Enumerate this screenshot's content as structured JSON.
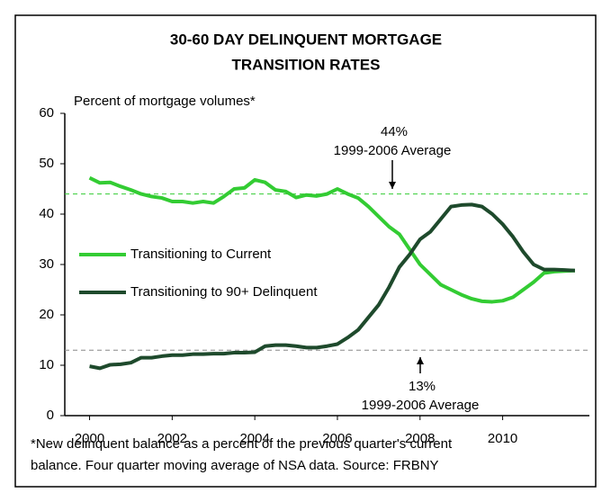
{
  "chart_data": {
    "type": "line",
    "title": [
      "30-60 DAY DELINQUENT MORTGAGE",
      "TRANSITION RATES"
    ],
    "ylabel": "Percent of mortgage volumes*",
    "footnote": [
      "*New delinquent balance as a percent of the previous quarter's current",
      "balance. Four quarter moving average of NSA data. Source: FRBNY"
    ],
    "x": [
      2000,
      2000.25,
      2000.5,
      2000.75,
      2001,
      2001.25,
      2001.5,
      2001.75,
      2002,
      2002.25,
      2002.5,
      2002.75,
      2003,
      2003.25,
      2003.5,
      2003.75,
      2004,
      2004.25,
      2004.5,
      2004.75,
      2005,
      2005.25,
      2005.5,
      2005.75,
      2006,
      2006.25,
      2006.5,
      2006.75,
      2007,
      2007.25,
      2007.5,
      2007.75,
      2008,
      2008.25,
      2008.5,
      2008.75,
      2009,
      2009.25,
      2009.5,
      2009.75,
      2010,
      2010.25,
      2010.5,
      2010.75,
      2011,
      2011.25,
      2011.5,
      2011.75
    ],
    "series": [
      {
        "name": "Transitioning to Current",
        "color": "#33cc33",
        "values": [
          47.2,
          46.2,
          46.3,
          45.5,
          44.8,
          44.0,
          43.5,
          43.2,
          42.5,
          42.5,
          42.2,
          42.5,
          42.2,
          43.5,
          45.0,
          45.2,
          46.8,
          46.3,
          44.8,
          44.5,
          43.3,
          43.8,
          43.6,
          44.0,
          45.0,
          44.0,
          43.2,
          41.5,
          39.5,
          37.5,
          36.0,
          33.0,
          30.0,
          28.0,
          26.0,
          25.0,
          24.0,
          23.2,
          22.7,
          22.6,
          22.8,
          23.5,
          25.0,
          26.5,
          28.3,
          28.6,
          28.7,
          28.8
        ]
      },
      {
        "name": "Transitioning to 90+ Delinquent",
        "color": "#1e4a2c",
        "values": [
          9.8,
          9.4,
          10.1,
          10.2,
          10.5,
          11.5,
          11.5,
          11.8,
          12.0,
          12.0,
          12.2,
          12.2,
          12.3,
          12.3,
          12.5,
          12.5,
          12.6,
          13.8,
          14.0,
          14.0,
          13.8,
          13.5,
          13.5,
          13.8,
          14.2,
          15.5,
          17.0,
          19.5,
          22.0,
          25.5,
          29.5,
          32.0,
          35.0,
          36.5,
          39.0,
          41.5,
          41.8,
          41.9,
          41.5,
          40.0,
          38.0,
          35.5,
          32.5,
          30.0,
          29.0,
          29.0,
          28.9,
          28.8
        ]
      }
    ],
    "reference_lines": [
      {
        "value": 44,
        "label": "44%",
        "note": "1999-2006 Average",
        "color": "#33cc33"
      },
      {
        "value": 13,
        "label": "13%",
        "note": "1999-2006 Average",
        "color": "#888888"
      }
    ],
    "xlim": [
      1999.4,
      2012.1
    ],
    "xticks": [
      2000,
      2002,
      2004,
      2006,
      2008,
      2010
    ],
    "ylim": [
      0,
      60
    ],
    "yticks": [
      0,
      10,
      20,
      30,
      40,
      50,
      60
    ]
  }
}
